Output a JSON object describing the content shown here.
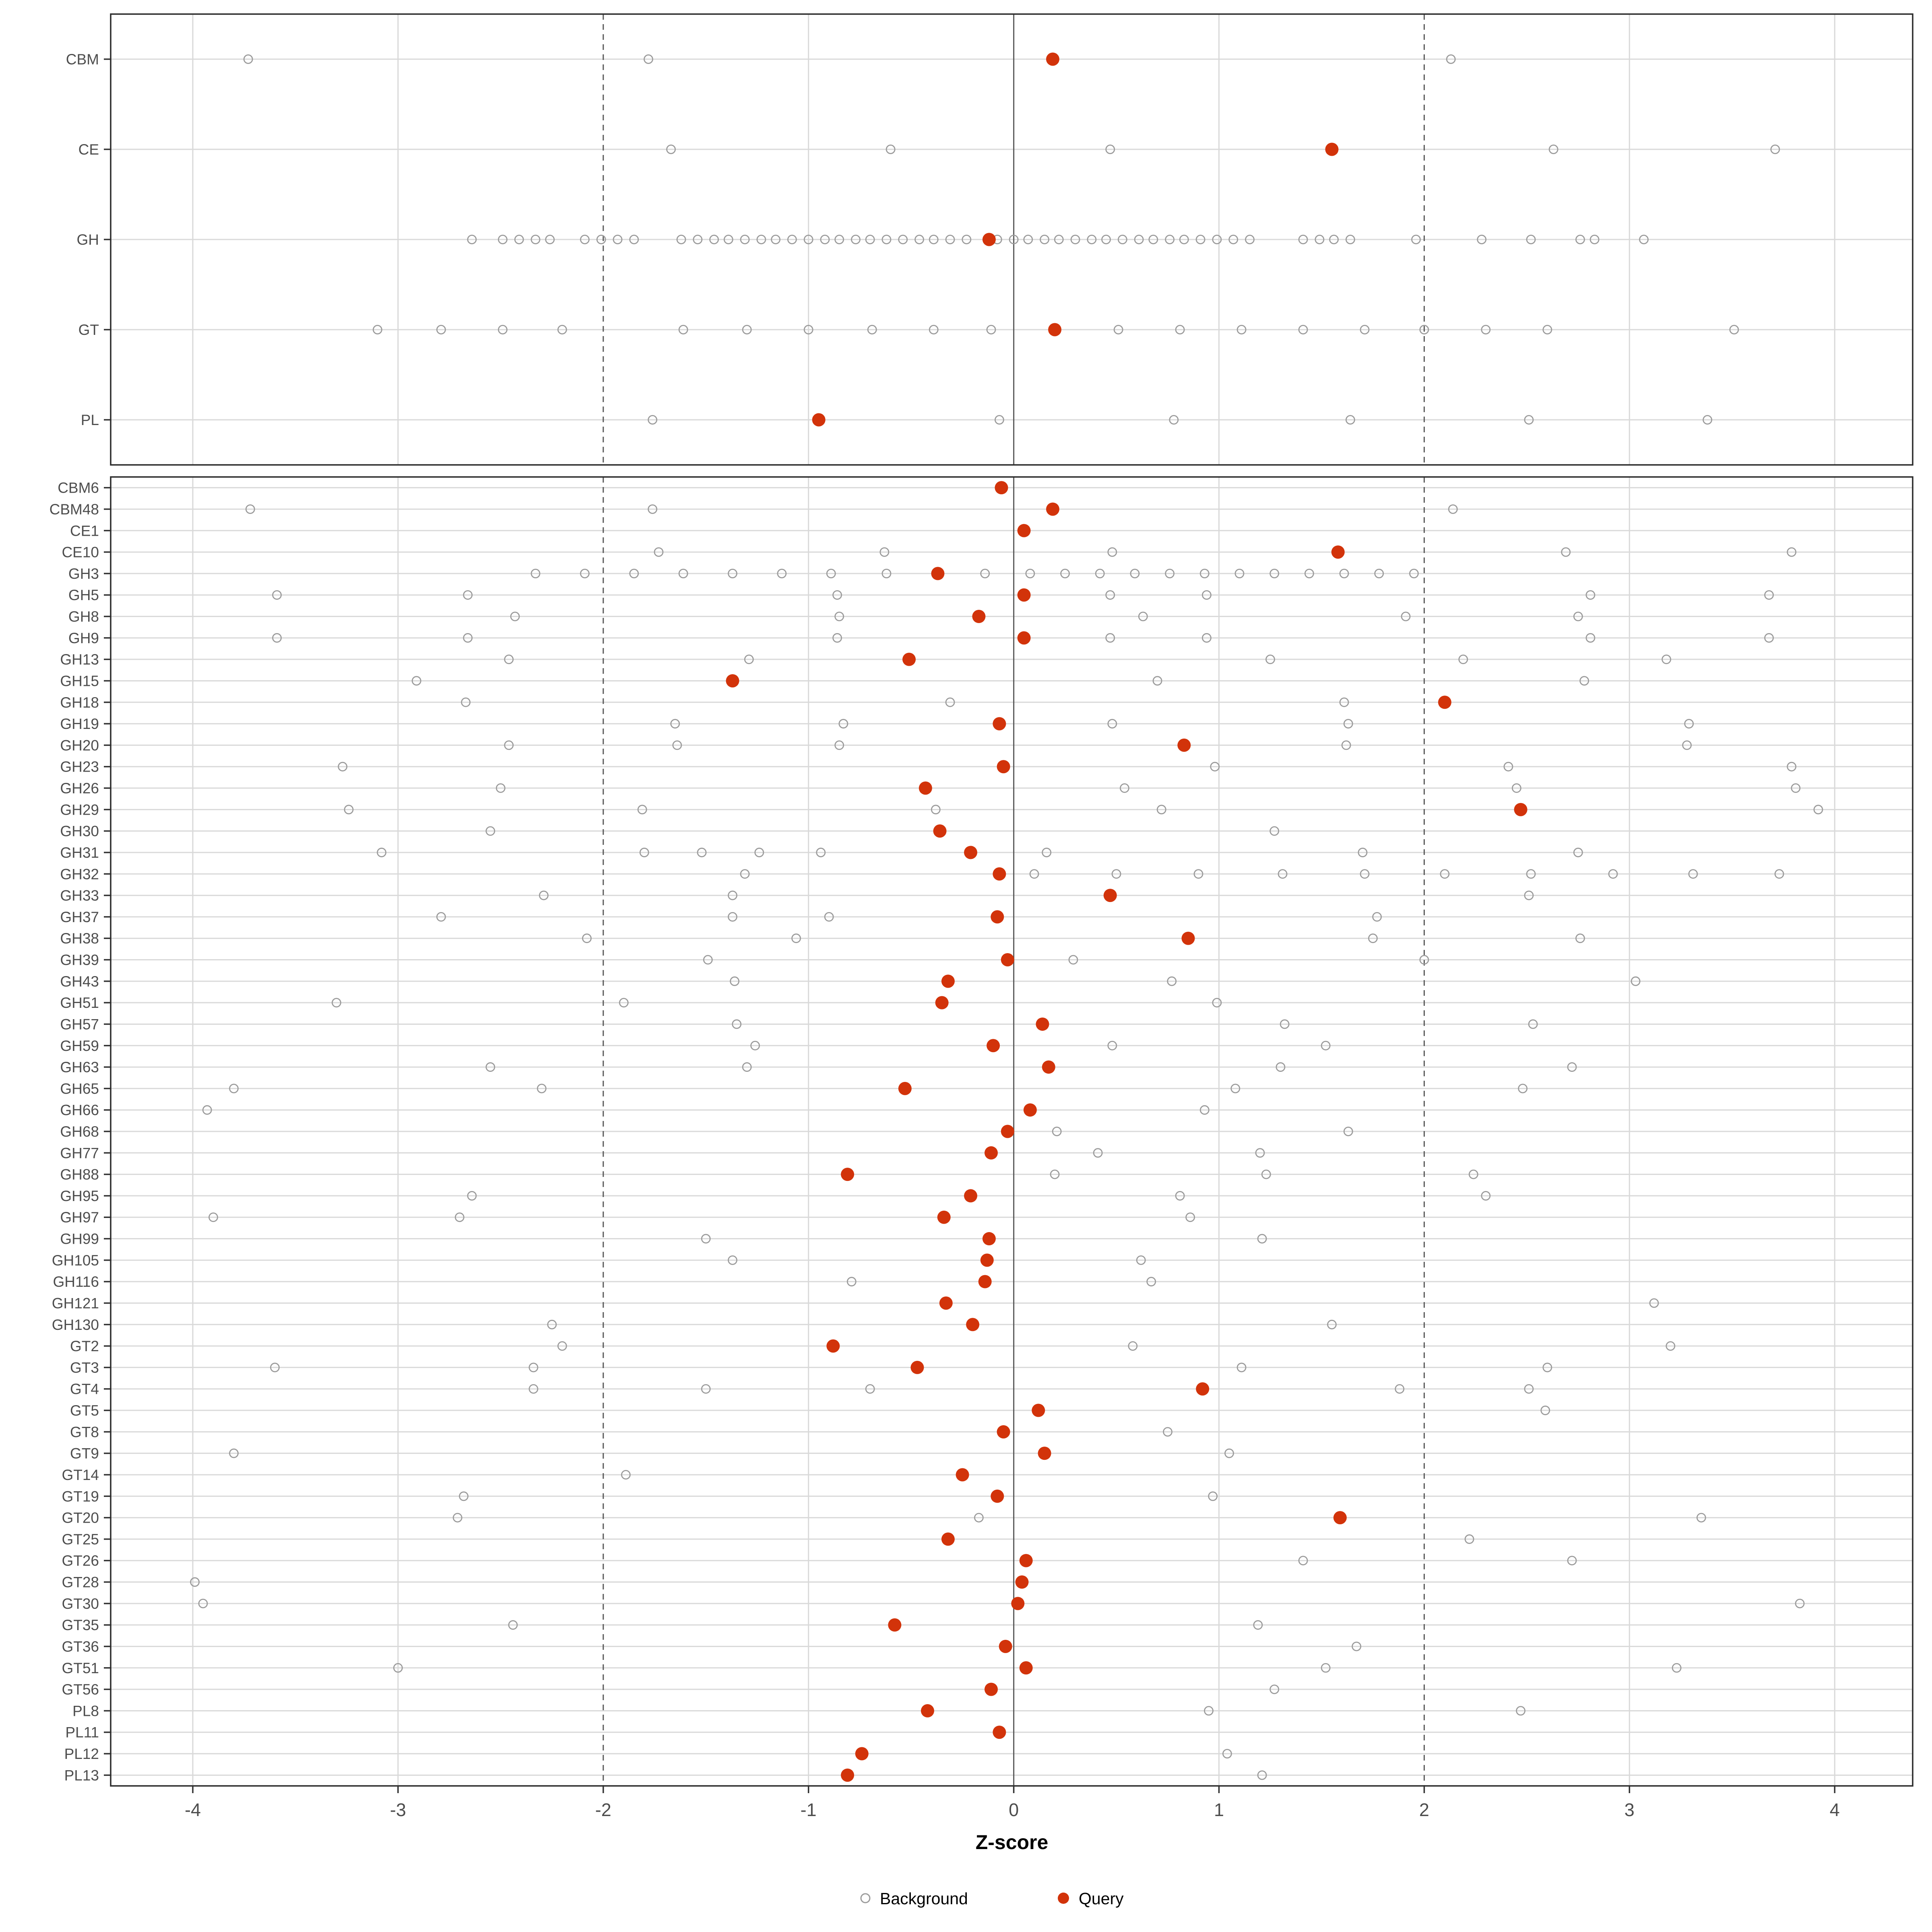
{
  "axis": {
    "title": "Z-score",
    "ticks": [
      -4,
      -3,
      -2,
      -1,
      0,
      1,
      2,
      3,
      4
    ],
    "x_min": -4.4,
    "x_max": 4.38,
    "zero_line": 0,
    "dashed_lines": [
      -2,
      2
    ]
  },
  "legend": {
    "background_label": "Background",
    "query_label": "Query",
    "position": "bottom"
  },
  "colors": {
    "query": "#d2330a",
    "background_stroke": "#9b9b9b",
    "grid": "#d9d9d9",
    "ref_line": "#595959",
    "panel_border": "#2b2b2b",
    "axis_text": "#4d4d4d",
    "title_text": "#000000"
  },
  "chart_data": [
    {
      "type": "scatter",
      "panel": "top",
      "title": "",
      "xlabel": "Z-score",
      "xlim": [
        -4.4,
        4.38
      ],
      "grid": true,
      "legend_position": "bottom",
      "series_names": [
        "Background",
        "Query"
      ],
      "rows": [
        {
          "label": "CBM",
          "query": 0.19,
          "background": [
            -3.73,
            -1.78,
            2.13
          ]
        },
        {
          "label": "CE",
          "query": 1.55,
          "background": [
            -1.67,
            -0.6,
            0.47,
            2.63,
            3.71
          ]
        },
        {
          "label": "GH",
          "query": -0.12,
          "background": [
            -2.64,
            -2.49,
            -2.41,
            -2.33,
            -2.26,
            -2.09,
            -2.01,
            -1.93,
            -1.85,
            -1.62,
            -1.54,
            -1.46,
            -1.39,
            -1.31,
            -1.23,
            -1.16,
            -1.08,
            -1.0,
            -0.92,
            -0.85,
            -0.77,
            -0.7,
            -0.62,
            -0.54,
            -0.46,
            -0.39,
            -0.31,
            -0.23,
            -0.08,
            0.0,
            0.07,
            0.15,
            0.22,
            0.3,
            0.38,
            0.45,
            0.53,
            0.61,
            0.68,
            0.76,
            0.83,
            0.91,
            0.99,
            1.07,
            1.15,
            1.41,
            1.49,
            1.56,
            1.64,
            1.96,
            2.28,
            2.52,
            2.76,
            2.83,
            3.07
          ]
        },
        {
          "label": "GT",
          "query": 0.2,
          "background": [
            -3.1,
            -2.79,
            -2.49,
            -2.2,
            -1.61,
            -1.3,
            -1.0,
            -0.69,
            -0.39,
            -0.11,
            0.51,
            0.81,
            1.11,
            1.41,
            1.71,
            2.0,
            2.3,
            2.6,
            3.51
          ]
        },
        {
          "label": "PL",
          "query": -0.95,
          "background": [
            -1.76,
            -0.07,
            0.78,
            1.64,
            2.51,
            3.38
          ]
        }
      ]
    },
    {
      "type": "scatter",
      "panel": "bottom",
      "title": "",
      "xlabel": "Z-score",
      "xlim": [
        -4.4,
        4.38
      ],
      "grid": true,
      "legend_position": "bottom",
      "series_names": [
        "Background",
        "Query"
      ],
      "rows": [
        {
          "label": "CBM6",
          "query": -0.06,
          "background": []
        },
        {
          "label": "CBM48",
          "query": 0.19,
          "background": [
            -3.72,
            -1.76,
            2.14
          ]
        },
        {
          "label": "CE1",
          "query": 0.05,
          "background": []
        },
        {
          "label": "CE10",
          "query": 1.58,
          "background": [
            -1.73,
            -0.63,
            0.48,
            2.69,
            3.79
          ]
        },
        {
          "label": "GH3",
          "query": -0.37,
          "background": [
            -2.33,
            -2.09,
            -1.85,
            -1.61,
            -1.37,
            -1.13,
            -0.89,
            -0.62,
            -0.14,
            0.08,
            0.25,
            0.42,
            0.59,
            0.76,
            0.93,
            1.1,
            1.27,
            1.44,
            1.61,
            1.78,
            1.95
          ]
        },
        {
          "label": "GH5",
          "query": 0.05,
          "background": [
            -3.59,
            -2.66,
            -0.86,
            0.47,
            0.94,
            2.81,
            3.68
          ]
        },
        {
          "label": "GH8",
          "query": -0.17,
          "background": [
            -2.43,
            -0.85,
            0.63,
            1.91,
            2.75
          ]
        },
        {
          "label": "GH9",
          "query": 0.05,
          "background": [
            -3.59,
            -2.66,
            -0.86,
            0.47,
            0.94,
            2.81,
            3.68
          ]
        },
        {
          "label": "GH13",
          "query": -0.51,
          "background": [
            -2.46,
            -1.29,
            1.25,
            2.19,
            3.18
          ]
        },
        {
          "label": "GH15",
          "query": -1.37,
          "background": [
            -2.91,
            0.7,
            2.78
          ]
        },
        {
          "label": "GH18",
          "query": 2.1,
          "background": [
            -2.67,
            -0.31,
            1.61
          ]
        },
        {
          "label": "GH19",
          "query": -0.07,
          "background": [
            -1.65,
            -0.83,
            0.48,
            1.63,
            3.29
          ]
        },
        {
          "label": "GH20",
          "query": 0.83,
          "background": [
            -2.46,
            -1.64,
            -0.85,
            1.62,
            3.28
          ]
        },
        {
          "label": "GH23",
          "query": -0.05,
          "background": [
            -3.27,
            0.98,
            2.41,
            3.79
          ]
        },
        {
          "label": "GH26",
          "query": -0.43,
          "background": [
            -2.5,
            0.54,
            2.45,
            3.81
          ]
        },
        {
          "label": "GH29",
          "query": 2.47,
          "background": [
            -3.24,
            -1.81,
            -0.38,
            0.72,
            3.92
          ]
        },
        {
          "label": "GH30",
          "query": -0.36,
          "background": [
            -2.55,
            1.27
          ]
        },
        {
          "label": "GH31",
          "query": -0.21,
          "background": [
            -3.08,
            -1.8,
            -1.52,
            -1.24,
            -0.94,
            0.16,
            1.7,
            2.75
          ]
        },
        {
          "label": "GH32",
          "query": -0.07,
          "background": [
            -1.31,
            0.1,
            0.5,
            0.9,
            1.31,
            1.71,
            2.1,
            2.52,
            2.92,
            3.31,
            3.73
          ]
        },
        {
          "label": "GH33",
          "query": 0.47,
          "background": [
            -2.29,
            -1.37,
            2.51
          ]
        },
        {
          "label": "GH37",
          "query": -0.08,
          "background": [
            -2.79,
            -1.37,
            -0.9,
            1.77
          ]
        },
        {
          "label": "GH38",
          "query": 0.85,
          "background": [
            -2.08,
            -1.06,
            1.75,
            2.76
          ]
        },
        {
          "label": "GH39",
          "query": -0.03,
          "background": [
            -1.49,
            0.29,
            2.0
          ]
        },
        {
          "label": "GH43",
          "query": -0.32,
          "background": [
            -1.36,
            0.77,
            3.03
          ]
        },
        {
          "label": "GH51",
          "query": -0.35,
          "background": [
            -3.3,
            -1.9,
            0.99
          ]
        },
        {
          "label": "GH57",
          "query": 0.14,
          "background": [
            -1.35,
            1.32,
            2.53
          ]
        },
        {
          "label": "GH59",
          "query": -0.1,
          "background": [
            -1.26,
            0.48,
            1.52
          ]
        },
        {
          "label": "GH63",
          "query": 0.17,
          "background": [
            -2.55,
            -1.3,
            1.3,
            2.72
          ]
        },
        {
          "label": "GH65",
          "query": -0.53,
          "background": [
            -3.8,
            -2.3,
            1.08,
            2.48
          ]
        },
        {
          "label": "GH66",
          "query": 0.08,
          "background": [
            -3.93,
            0.93
          ]
        },
        {
          "label": "GH68",
          "query": -0.03,
          "background": [
            0.21,
            1.63
          ]
        },
        {
          "label": "GH77",
          "query": -0.11,
          "background": [
            0.41,
            1.2
          ]
        },
        {
          "label": "GH88",
          "query": -0.81,
          "background": [
            0.2,
            1.23,
            2.24
          ]
        },
        {
          "label": "GH95",
          "query": -0.21,
          "background": [
            -2.64,
            0.81,
            2.3
          ]
        },
        {
          "label": "GH97",
          "query": -0.34,
          "background": [
            -3.9,
            -2.7,
            0.86
          ]
        },
        {
          "label": "GH99",
          "query": -0.12,
          "background": [
            -1.5,
            1.21
          ]
        },
        {
          "label": "GH105",
          "query": -0.13,
          "background": [
            -1.37,
            0.62
          ]
        },
        {
          "label": "GH116",
          "query": -0.14,
          "background": [
            -0.79,
            0.67
          ]
        },
        {
          "label": "GH121",
          "query": -0.33,
          "background": [
            3.12
          ]
        },
        {
          "label": "GH130",
          "query": -0.2,
          "background": [
            -2.25,
            1.55
          ]
        },
        {
          "label": "GT2",
          "query": -0.88,
          "background": [
            -2.2,
            0.58,
            3.2
          ]
        },
        {
          "label": "GT3",
          "query": -0.47,
          "background": [
            -3.6,
            -2.34,
            1.11,
            2.6
          ]
        },
        {
          "label": "GT4",
          "query": 0.92,
          "background": [
            -2.34,
            -1.5,
            -0.7,
            1.88,
            2.51
          ]
        },
        {
          "label": "GT5",
          "query": 0.12,
          "background": [
            2.59
          ]
        },
        {
          "label": "GT8",
          "query": -0.05,
          "background": [
            0.75
          ]
        },
        {
          "label": "GT9",
          "query": 0.15,
          "background": [
            -3.8,
            1.05
          ]
        },
        {
          "label": "GT14",
          "query": -0.25,
          "background": [
            -1.89
          ]
        },
        {
          "label": "GT19",
          "query": -0.08,
          "background": [
            -2.68,
            0.97
          ]
        },
        {
          "label": "GT20",
          "query": 1.59,
          "background": [
            -2.71,
            -0.17,
            3.35
          ]
        },
        {
          "label": "GT25",
          "query": -0.32,
          "background": [
            2.22
          ]
        },
        {
          "label": "GT26",
          "query": 0.06,
          "background": [
            1.41,
            2.72
          ]
        },
        {
          "label": "GT28",
          "query": 0.04,
          "background": [
            -3.99
          ]
        },
        {
          "label": "GT30",
          "query": 0.02,
          "background": [
            -3.95,
            3.83
          ]
        },
        {
          "label": "GT35",
          "query": -0.58,
          "background": [
            -2.44,
            1.19
          ]
        },
        {
          "label": "GT36",
          "query": -0.04,
          "background": [
            1.67
          ]
        },
        {
          "label": "GT51",
          "query": 0.06,
          "background": [
            -3.0,
            1.52,
            3.23
          ]
        },
        {
          "label": "GT56",
          "query": -0.11,
          "background": [
            1.27
          ]
        },
        {
          "label": "PL8",
          "query": -0.42,
          "background": [
            0.95,
            2.47
          ]
        },
        {
          "label": "PL11",
          "query": -0.07,
          "background": []
        },
        {
          "label": "PL12",
          "query": -0.74,
          "background": [
            1.04
          ]
        },
        {
          "label": "PL13",
          "query": -0.81,
          "background": [
            1.21
          ]
        }
      ]
    }
  ],
  "layout_note_visible_numbers": {
    "x_tick_labels": [
      "-4",
      "-3",
      "-2",
      "-1",
      "0",
      "1",
      "2",
      "3",
      "4"
    ]
  }
}
